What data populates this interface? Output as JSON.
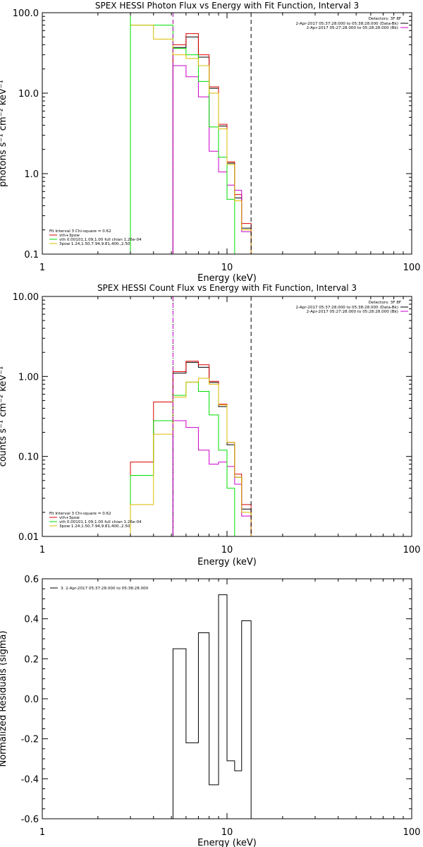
{
  "chart_data": [
    {
      "type": "line",
      "title": "SPEX HESSI Photon Flux vs Energy with Fit Function, Interval 3",
      "xlabel": "Energy (keV)",
      "ylabel": "photons s⁻¹ cm⁻² keV⁻¹",
      "xscale": "log",
      "yscale": "log",
      "xlim": [
        1,
        100
      ],
      "ylim": [
        0.1,
        100
      ],
      "x_ticks": [
        {
          "v": 1,
          "label": "1"
        },
        {
          "v": 10,
          "label": "10"
        },
        {
          "v": 100,
          "label": "100"
        }
      ],
      "y_ticks": [
        {
          "v": 0.1,
          "label": "0.1"
        },
        {
          "v": 1,
          "label": "1.0"
        },
        {
          "v": 10,
          "label": "10.0"
        },
        {
          "v": 100,
          "label": "100.0"
        }
      ],
      "detectors_label": "Detectors: 3F 8F",
      "time_legend": [
        {
          "text": "2-Apr-2017 05:37:28.000 to 05:38:28.000 (Data-Bk)",
          "color": "#000000"
        },
        {
          "text": "2-Apr-2017 05:27:28.000 to 05:28:28.000 (Bk)",
          "color": "#cc00cc"
        }
      ],
      "fit_legend": [
        {
          "text": "Fit Interval 3   Chi-square = 0.62",
          "color": "#000000"
        },
        {
          "text": "vth+3pow",
          "color": "#dd0000"
        },
        {
          "text": "vth 0.00101,1.09,1.00  full chian 1.26e-04",
          "color": "#00dd00"
        },
        {
          "text": "3pow 1.24,1.50,7.94,9.81,400.,2.50",
          "color": "#ddbb00"
        }
      ],
      "vlines": [
        {
          "x": 3.0,
          "color": "#00dd00",
          "style": "solid"
        },
        {
          "x": 5.1,
          "color": "#00dd00",
          "style": "dashed"
        },
        {
          "x": 5.1,
          "color": "#cc00cc",
          "style": "dashed"
        },
        {
          "x": 13.5,
          "color": "#000000",
          "style": "dashed"
        }
      ],
      "series": [
        {
          "color": "#000000",
          "edges": [
            5.1,
            6.0,
            7.0,
            8.0,
            9.0,
            10.0,
            11.0,
            12.0,
            13.5
          ],
          "values": [
            37,
            50,
            28,
            11.5,
            3.9,
            1.35,
            0.5,
            0.21
          ]
        },
        {
          "color": "#dd0000",
          "edges": [
            5.1,
            6.0,
            7.0,
            8.0,
            9.0,
            10.0,
            11.0,
            12.0,
            13.5
          ],
          "values": [
            40,
            55,
            30,
            12,
            4.1,
            1.4,
            0.55,
            0.24
          ]
        },
        {
          "color": "#cc00cc",
          "edges": [
            5.1,
            6.0,
            7.0,
            8.0,
            9.0,
            10.0,
            11.0,
            12.0,
            13.5
          ],
          "values": [
            22,
            16,
            9.0,
            1.9,
            1.05,
            0.72,
            0.62,
            0.19
          ]
        },
        {
          "color": "#00dd00",
          "edges": [
            3.0,
            4.0,
            5.1,
            6.0,
            7.0,
            8.0,
            9.0,
            10.0,
            11.0,
            12.0
          ],
          "values": [
            70,
            70,
            36,
            30,
            14,
            3.8,
            1.6,
            0.48,
            0.1
          ]
        },
        {
          "color": "#ddbb00",
          "edges": [
            3.0,
            4.0,
            5.1,
            6.0,
            7.0,
            8.0,
            9.0,
            10.0,
            11.0,
            12.0,
            13.5
          ],
          "values": [
            70,
            47,
            30,
            27,
            22,
            10,
            3.6,
            1.3,
            0.46,
            0.2,
            0.1
          ]
        }
      ]
    },
    {
      "type": "line",
      "title": "SPEX HESSI Count Flux vs Energy with Fit Function, Interval 3",
      "xlabel": "Energy (keV)",
      "ylabel": "counts s⁻¹ cm⁻² keV⁻¹",
      "xscale": "log",
      "yscale": "log",
      "xlim": [
        1,
        100
      ],
      "ylim": [
        0.01,
        10
      ],
      "x_ticks": [
        {
          "v": 1,
          "label": "1"
        },
        {
          "v": 10,
          "label": "10"
        },
        {
          "v": 100,
          "label": "100"
        }
      ],
      "y_ticks": [
        {
          "v": 0.01,
          "label": "0.01"
        },
        {
          "v": 0.1,
          "label": "0.10"
        },
        {
          "v": 1,
          "label": "1.00"
        },
        {
          "v": 10,
          "label": "10.00"
        }
      ],
      "detectors_label": "Detectors: 3F 8F",
      "time_legend": [
        {
          "text": "2-Apr-2017 05:37:28.000 to 05:38:28.000 (Data-Bk)",
          "color": "#000000"
        },
        {
          "text": "2-Apr-2017 05:27:28.000 to 05:28:28.000 (Bk)",
          "color": "#cc00cc"
        }
      ],
      "fit_legend": [
        {
          "text": "Fit Interval 3   Chi-square = 0.62",
          "color": "#000000"
        },
        {
          "text": "vth+3pow",
          "color": "#dd0000"
        },
        {
          "text": "vth 0.00101,1.09,1.00  full chian 1.26e-04",
          "color": "#00dd00"
        },
        {
          "text": "3pow 1.24,1.50,7.94,9.81,400.,2.50",
          "color": "#ddbb00"
        }
      ],
      "vlines": [
        {
          "x": 5.1,
          "color": "#000000",
          "style": "dotted"
        },
        {
          "x": 5.1,
          "color": "#cc00cc",
          "style": "dashed"
        },
        {
          "x": 13.5,
          "color": "#000000",
          "style": "dashed"
        }
      ],
      "series": [
        {
          "color": "#000000",
          "edges": [
            5.1,
            6.0,
            7.0,
            8.0,
            9.0,
            10.0,
            11.0,
            12.0,
            13.5
          ],
          "values": [
            1.1,
            1.5,
            1.3,
            0.84,
            0.42,
            0.14,
            0.055,
            0.022
          ]
        },
        {
          "color": "#dd0000",
          "edges": [
            3.0,
            4.0,
            5.1,
            6.0,
            7.0,
            8.0,
            9.0,
            10.0,
            11.0,
            12.0,
            13.5
          ],
          "values": [
            0.085,
            0.48,
            1.15,
            1.55,
            1.4,
            0.87,
            0.45,
            0.15,
            0.06,
            0.025
          ]
        },
        {
          "color": "#cc00cc",
          "edges": [
            5.1,
            6.0,
            7.0,
            8.0,
            9.0,
            10.0,
            11.0,
            12.0,
            13.5
          ],
          "values": [
            0.28,
            0.23,
            0.12,
            0.08,
            0.085,
            0.075,
            0.045,
            0.018
          ]
        },
        {
          "color": "#00dd00",
          "edges": [
            3.0,
            4.0,
            5.1,
            6.0,
            7.0,
            8.0,
            9.0,
            10.0,
            11.0,
            12.0
          ],
          "values": [
            0.058,
            0.28,
            0.58,
            0.85,
            0.65,
            0.33,
            0.12,
            0.04,
            0.01
          ]
        },
        {
          "color": "#ddbb00",
          "edges": [
            3.0,
            4.0,
            5.1,
            6.0,
            7.0,
            8.0,
            9.0,
            10.0,
            11.0,
            12.0,
            13.5
          ],
          "values": [
            0.025,
            0.19,
            0.55,
            0.85,
            0.95,
            0.8,
            0.44,
            0.15,
            0.055,
            0.02,
            0.01
          ]
        }
      ]
    },
    {
      "type": "line",
      "title": "",
      "xlabel": "Energy (keV)",
      "ylabel": "Normalized Residuals (sigma)",
      "xscale": "log",
      "yscale": "linear",
      "xlim": [
        1,
        100
      ],
      "ylim": [
        -0.6,
        0.6
      ],
      "x_ticks": [
        {
          "v": 1,
          "label": "1"
        },
        {
          "v": 10,
          "label": "10"
        },
        {
          "v": 100,
          "label": "100"
        }
      ],
      "y_ticks": [
        {
          "v": 0.6,
          "label": "0.6"
        },
        {
          "v": 0.4,
          "label": "0.4"
        },
        {
          "v": 0.2,
          "label": "0.2"
        },
        {
          "v": 0.0,
          "label": "0.0"
        },
        {
          "v": -0.2,
          "label": "-0.2"
        },
        {
          "v": -0.4,
          "label": "-0.4"
        },
        {
          "v": -0.6,
          "label": "-0.6"
        }
      ],
      "legend": [
        {
          "text": "3.  2-Apr-2017 05:37:28.000 to 05:38:28.000",
          "color": "#000000"
        }
      ],
      "series": [
        {
          "color": "#000000",
          "edges": [
            5.1,
            6.0,
            7.0,
            8.0,
            9.0,
            10.0,
            11.0,
            12.0,
            13.5
          ],
          "values": [
            0.25,
            -0.22,
            0.33,
            -0.43,
            0.52,
            -0.31,
            -0.36,
            0.39
          ]
        }
      ]
    }
  ]
}
